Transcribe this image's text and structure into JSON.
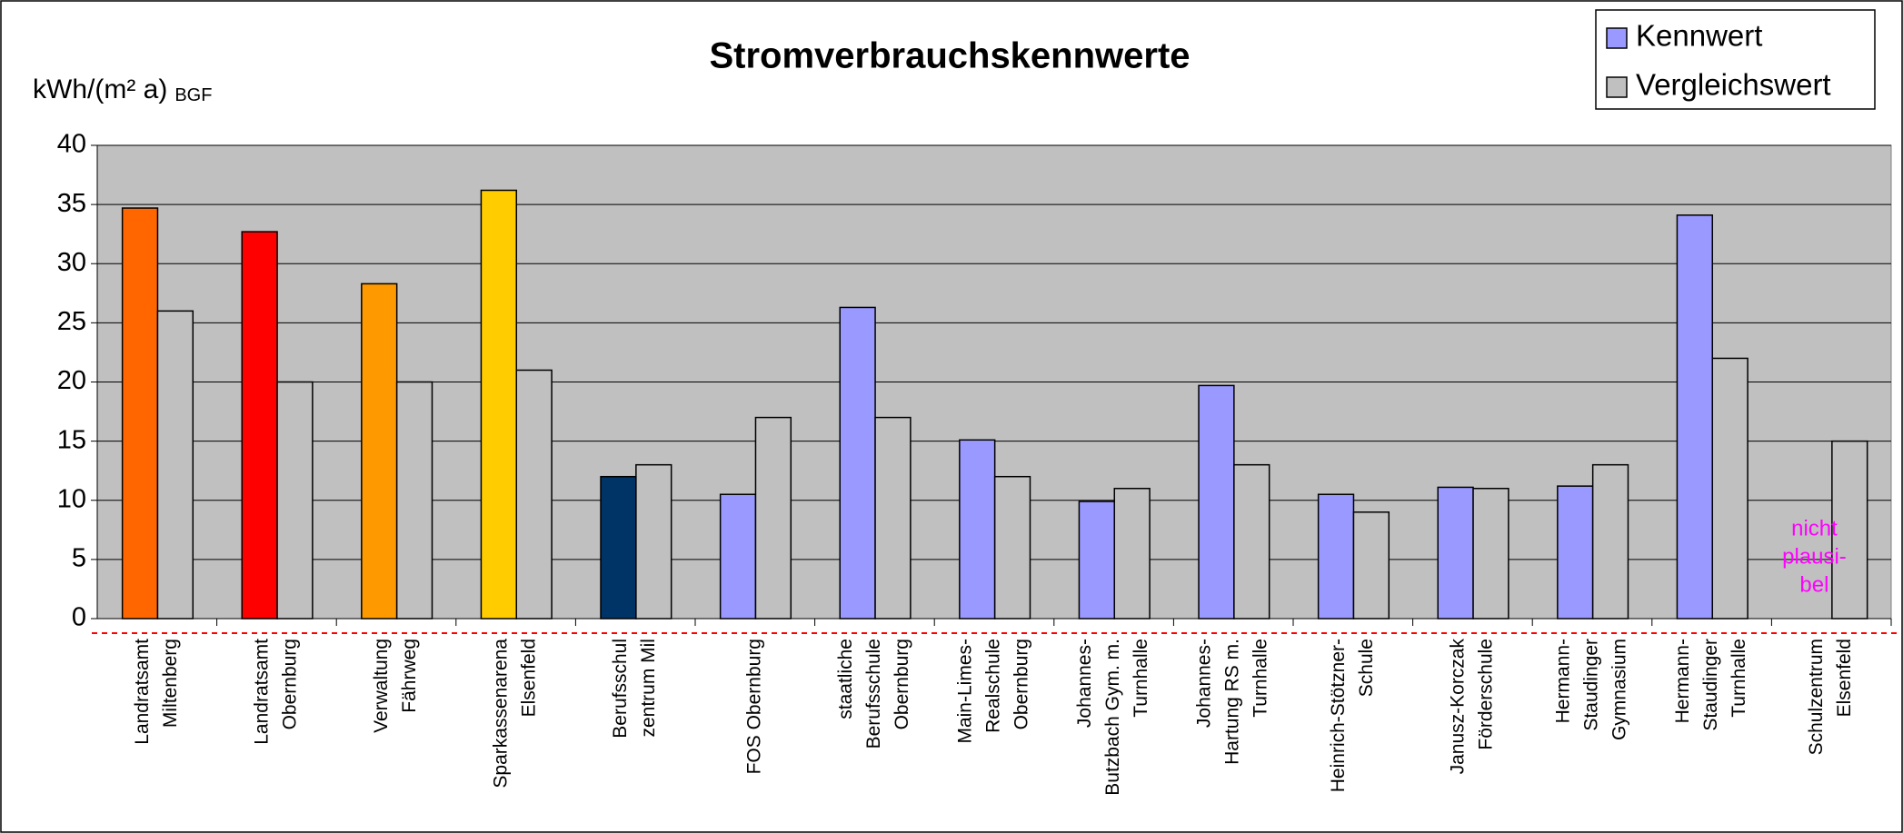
{
  "chart_data": {
    "type": "bar",
    "title": "Stromverbrauchskennwerte",
    "y_label": "kWh/(m² a)",
    "y_label_sub": "BGF",
    "categories": [
      [
        "Landratsamt",
        "Miltenberg"
      ],
      [
        "Landratsamt",
        "Obernburg"
      ],
      [
        "Verwaltung",
        "Fährweg"
      ],
      [
        "Sparkassenarena",
        "Elsenfeld"
      ],
      [
        "Berufsschul",
        "zentrum Mil"
      ],
      [
        "FOS Obernburg"
      ],
      [
        "staatliche",
        "Berufsschule",
        "Obernburg"
      ],
      [
        "Main-Limes-",
        "Realschule",
        "Obernburg"
      ],
      [
        "Johannes-",
        "Butzbach Gym. m.",
        "Turnhalle"
      ],
      [
        "Johannes-",
        "Hartung RS m.",
        "Turnhalle"
      ],
      [
        "Heinrich-Stötzner-",
        "Schule"
      ],
      [
        "Janusz-Korczak",
        "Förderschule"
      ],
      [
        "Hermann-",
        "Staudinger",
        "Gymnasium"
      ],
      [
        "Hermann-",
        "Staudinger",
        "Turnhalle"
      ],
      [
        "Schulzentrum",
        "Elsenfeld"
      ]
    ],
    "series": [
      {
        "name": "Kennwert",
        "color": "#9999ff",
        "point_colors": [
          "#ff6600",
          "#ff0000",
          "#ff9900",
          "#ffcc00",
          "#003366",
          "#9999ff",
          "#9999ff",
          "#9999ff",
          "#9999ff",
          "#9999ff",
          "#9999ff",
          "#9999ff",
          "#9999ff",
          "#9999ff",
          "#9999ff"
        ],
        "values": [
          34.7,
          32.7,
          28.3,
          36.2,
          12,
          10.5,
          26.3,
          15.1,
          9.9,
          19.7,
          10.5,
          11.1,
          11.2,
          34.1,
          null
        ]
      },
      {
        "name": "Vergleichswert",
        "color": "#c0c0c0",
        "values": [
          26,
          20,
          20,
          21,
          13,
          17,
          17,
          12,
          11,
          13,
          9,
          11,
          13,
          22,
          15
        ]
      }
    ],
    "annotation": {
      "lines": [
        "nicht",
        "plausi-",
        "bel"
      ],
      "category": 14,
      "color": "#ff00ff"
    },
    "ylim": [
      0,
      40
    ],
    "yticks": [
      0,
      5,
      10,
      15,
      20,
      25,
      30,
      35,
      40
    ],
    "grid": true,
    "plot_background": "#c0c0c0",
    "legend": "top-right"
  }
}
